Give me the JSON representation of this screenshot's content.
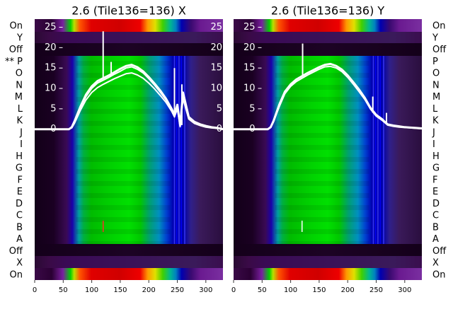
{
  "row_labels_left": [
    "On",
    "Y",
    "Off",
    "** P",
    "O",
    "N",
    "M",
    "L",
    "K",
    "J",
    "I",
    "H",
    "G",
    "F",
    "E",
    "D",
    "C",
    "B",
    "A",
    "Off",
    "X",
    "On"
  ],
  "row_labels_right": [
    "On",
    "Y",
    "Off",
    "P",
    "O",
    "N",
    "M",
    "L",
    "K",
    "J",
    "I",
    "H",
    "G",
    "F",
    "E",
    "D",
    "C",
    "B",
    "A",
    "Off",
    "X",
    "On"
  ],
  "chart_data": [
    {
      "type": "line",
      "title": "2.6 (Tile136=136) X",
      "xlabel": "",
      "ylabel": "",
      "xlim": [
        0,
        330
      ],
      "ylim": [
        -37,
        27
      ],
      "x_ticks": [
        0,
        50,
        100,
        150,
        200,
        250,
        300
      ],
      "y_ticks": [
        0,
        5,
        10,
        15,
        20,
        25
      ],
      "background": "spectrogram heatmap (nipy_spectral), rows On / Y / Off / P-A / Off / X / On",
      "series": [
        {
          "x": [
            0,
            60,
            65,
            70,
            80,
            90,
            100,
            110,
            120,
            130,
            140,
            150,
            160,
            170,
            180,
            190,
            200,
            210,
            220,
            230,
            240,
            245,
            250,
            255,
            260,
            265,
            270,
            280,
            290,
            300,
            310,
            320,
            330
          ],
          "y": [
            0,
            0,
            0.5,
            2,
            5.5,
            8.5,
            10.5,
            11.8,
            12.5,
            13.2,
            14,
            14.8,
            15.5,
            15.8,
            15.2,
            14.2,
            12.8,
            11.2,
            9.5,
            7.5,
            5,
            3.5,
            6,
            1,
            9,
            6,
            3,
            1.8,
            1.2,
            0.8,
            0.5,
            0.3,
            0
          ]
        },
        {
          "x": [
            0,
            60,
            65,
            70,
            80,
            90,
            100,
            110,
            120,
            130,
            140,
            150,
            160,
            170,
            180,
            190,
            200,
            210,
            220,
            230,
            240,
            245,
            250,
            255,
            260,
            265,
            270,
            280,
            290,
            300,
            310,
            320,
            330
          ],
          "y": [
            0,
            0,
            0.4,
            1.8,
            5.2,
            8,
            10,
            11.3,
            12,
            12.7,
            13.5,
            14.2,
            15,
            15.3,
            14.7,
            13.8,
            12.4,
            10.8,
            9.1,
            7.2,
            4.8,
            3.2,
            5.5,
            0.8,
            8.5,
            5.8,
            2.8,
            1.6,
            1,
            0.6,
            0.4,
            0.2,
            0
          ]
        },
        {
          "x": [
            0,
            60,
            65,
            70,
            80,
            90,
            100,
            110,
            120,
            130,
            140,
            150,
            160,
            170,
            180,
            190,
            200,
            210,
            220,
            230,
            240,
            245,
            250,
            255,
            260,
            265,
            270,
            280,
            290,
            300,
            310,
            320,
            330
          ],
          "y": [
            0,
            0,
            0.3,
            1.5,
            4.6,
            7.2,
            9,
            10.2,
            11,
            11.7,
            12.4,
            13,
            13.6,
            13.8,
            13.3,
            12.5,
            11.3,
            9.9,
            8.3,
            6.6,
            4.4,
            3,
            5,
            0.6,
            7.5,
            5,
            2.5,
            1.4,
            0.9,
            0.5,
            0.3,
            0.2,
            0
          ]
        }
      ],
      "spikes": [
        {
          "x": 120,
          "from": 12.5,
          "to": 24
        },
        {
          "x": 134,
          "from": 13,
          "to": 16.5
        },
        {
          "x": 245,
          "from": 3.5,
          "to": 15
        },
        {
          "x": 258,
          "from": 1,
          "to": 11
        }
      ]
    },
    {
      "type": "line",
      "title": "2.6 (Tile136=136) Y",
      "xlabel": "",
      "ylabel": "",
      "xlim": [
        0,
        330
      ],
      "ylim": [
        -37,
        27
      ],
      "x_ticks": [
        0,
        50,
        100,
        150,
        200,
        250,
        300
      ],
      "y_ticks": [
        0,
        5,
        10,
        15,
        20,
        25
      ],
      "background": "spectrogram heatmap (nipy_spectral), rows On / Y / Off / P-A / Off / X / On",
      "series": [
        {
          "x": [
            0,
            60,
            65,
            70,
            80,
            90,
            100,
            110,
            120,
            130,
            140,
            150,
            160,
            170,
            180,
            190,
            200,
            210,
            220,
            230,
            240,
            250,
            260,
            265,
            270,
            280,
            290,
            300,
            310,
            320,
            330
          ],
          "y": [
            0,
            0,
            0.5,
            2,
            6,
            9.2,
            11,
            12.2,
            13,
            13.8,
            14.5,
            15.2,
            15.8,
            16,
            15.5,
            14.6,
            13.2,
            11.5,
            9.7,
            7.7,
            5.2,
            3.5,
            2.5,
            1.8,
            1.2,
            0.9,
            0.7,
            0.5,
            0.4,
            0.3,
            0.2
          ]
        },
        {
          "x": [
            0,
            60,
            65,
            70,
            80,
            90,
            100,
            110,
            120,
            130,
            140,
            150,
            160,
            170,
            180,
            190,
            200,
            210,
            220,
            230,
            240,
            250,
            260,
            265,
            270,
            280,
            290,
            300,
            310,
            320,
            330
          ],
          "y": [
            0,
            0,
            0.4,
            1.8,
            5.5,
            8.7,
            10.5,
            11.7,
            12.5,
            13.3,
            14,
            14.7,
            15.3,
            15.4,
            15,
            14.1,
            12.7,
            11,
            9.2,
            7.3,
            4.9,
            3.2,
            2.2,
            1.6,
            1,
            0.7,
            0.5,
            0.4,
            0.3,
            0.2,
            0.1
          ]
        }
      ],
      "spikes": [
        {
          "x": 121,
          "from": 13,
          "to": 21
        },
        {
          "x": 244,
          "from": 4,
          "to": 8
        },
        {
          "x": 268,
          "from": 1.5,
          "to": 4
        }
      ]
    }
  ]
}
